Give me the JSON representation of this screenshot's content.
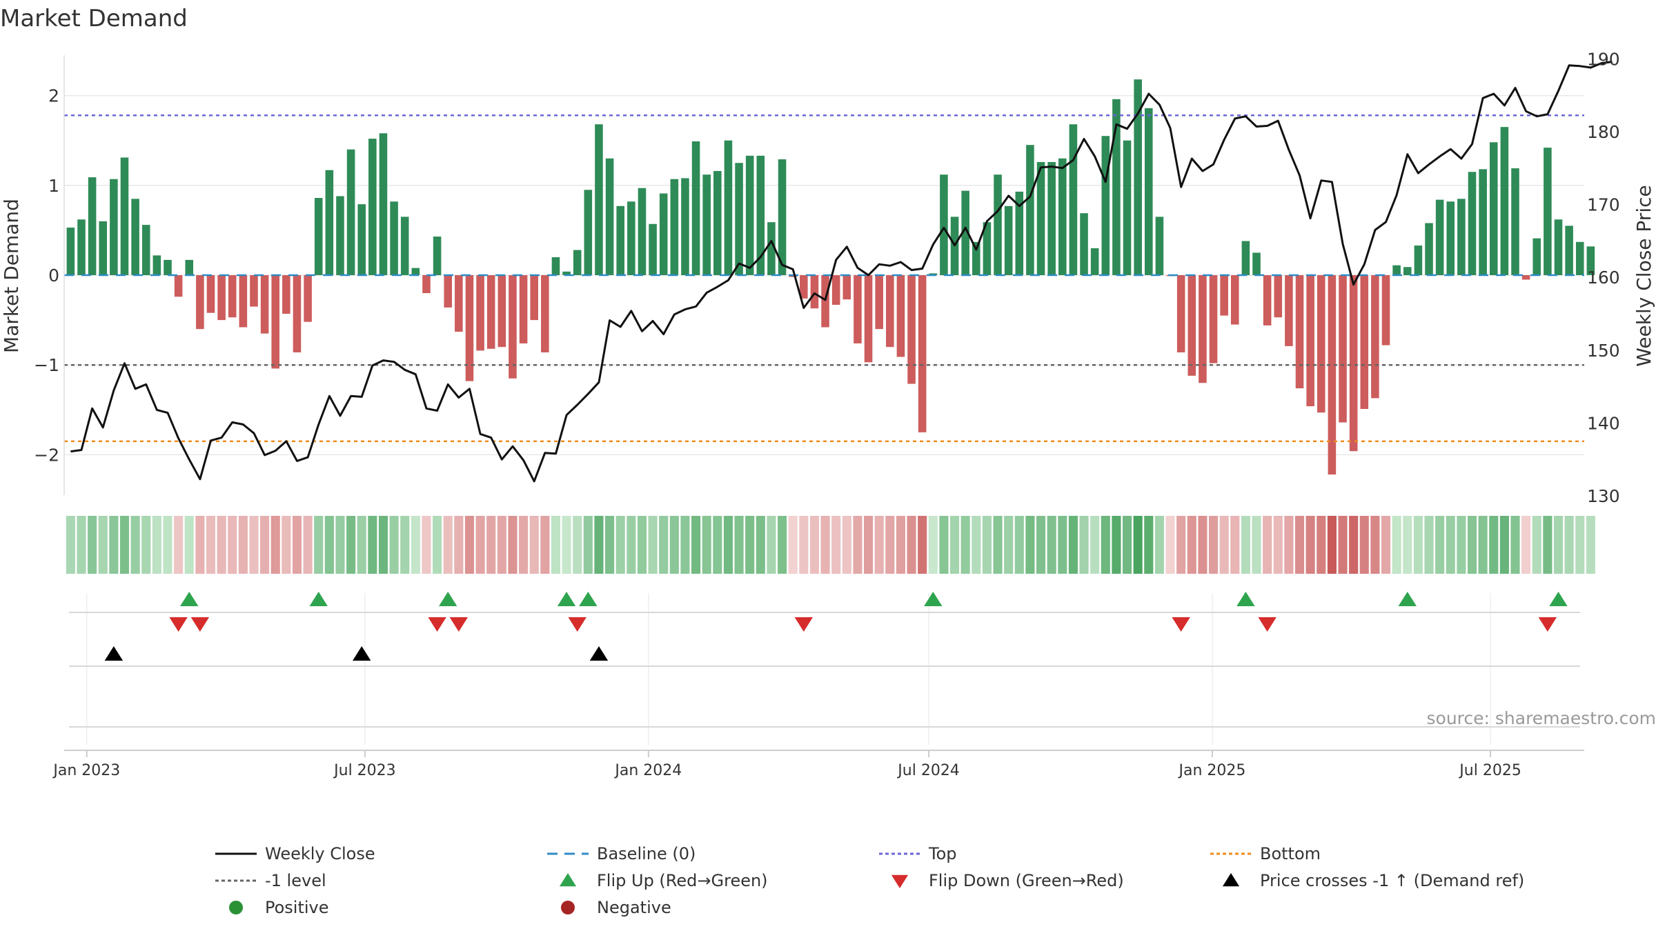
{
  "chart_data": {
    "type": "bar+line",
    "title": "Market Demand",
    "ylabel_left": "Market Demand",
    "ylabel_right": "Weekly Close Price",
    "ylim_left": [
      -2.45,
      2.45
    ],
    "ylim_right": [
      130.1,
      190.5
    ],
    "left_ticks": [
      2,
      1,
      0,
      -1,
      -2
    ],
    "left_tick_labels": [
      "2",
      "1",
      "0",
      "−1",
      "−2"
    ],
    "right_ticks": [
      190,
      180,
      170,
      160,
      150,
      140,
      130
    ],
    "right_tick_labels": [
      "190",
      "180",
      "170",
      "160",
      "150",
      "140",
      "130"
    ],
    "x_start": "2022-12-30",
    "week_days": 7,
    "x_range_weeks": [
      -0.6,
      140.4
    ],
    "x_ticks": [
      {
        "label": "Jan 2023",
        "week": 1.5
      },
      {
        "label": "Jul 2023",
        "week": 27.3
      },
      {
        "label": "Jan 2024",
        "week": 53.6
      },
      {
        "label": "Jul 2024",
        "week": 79.6
      },
      {
        "label": "Jan 2025",
        "week": 105.9
      },
      {
        "label": "Jul 2025",
        "week": 131.7
      }
    ],
    "levels": {
      "top": 1.78,
      "bottom": -1.85,
      "minus_one": -1,
      "baseline": 0
    },
    "demand": [
      0.53,
      0.62,
      1.09,
      0.6,
      1.07,
      1.31,
      0.85,
      0.56,
      0.22,
      0.17,
      -0.24,
      0.17,
      -0.6,
      -0.42,
      -0.5,
      -0.47,
      -0.58,
      -0.35,
      -0.65,
      -1.04,
      -0.43,
      -0.86,
      -0.52,
      0.86,
      1.17,
      0.88,
      1.4,
      0.79,
      1.52,
      1.58,
      0.82,
      0.65,
      0.08,
      -0.2,
      0.43,
      -0.36,
      -0.63,
      -1.18,
      -0.84,
      -0.82,
      -0.8,
      -1.15,
      -0.76,
      -0.5,
      -0.86,
      0.2,
      0.04,
      0.28,
      0.95,
      1.68,
      1.3,
      0.77,
      0.82,
      0.97,
      0.57,
      0.91,
      1.07,
      1.08,
      1.49,
      1.12,
      1.16,
      1.5,
      1.25,
      1.33,
      1.33,
      0.59,
      1.29,
      -0.02,
      -0.26,
      -0.37,
      -0.58,
      -0.33,
      -0.27,
      -0.76,
      -0.97,
      -0.6,
      -0.8,
      -0.91,
      -1.21,
      -1.75,
      0.02,
      1.12,
      0.65,
      0.94,
      0.37,
      0.59,
      1.12,
      0.77,
      0.93,
      1.45,
      1.26,
      1.26,
      1.3,
      1.68,
      0.69,
      0.3,
      1.55,
      1.96,
      1.5,
      2.18,
      1.86,
      0.65,
      -0.01,
      -0.86,
      -1.12,
      -1.2,
      -0.98,
      -0.45,
      -0.55,
      0.38,
      0.25,
      -0.56,
      -0.47,
      -0.79,
      -1.26,
      -1.46,
      -1.53,
      -2.22,
      -1.64,
      -1.96,
      -1.49,
      -1.37,
      -0.78,
      0.11,
      0.09,
      0.33,
      0.58,
      0.84,
      0.82,
      0.85,
      1.15,
      1.18,
      1.48,
      1.65,
      1.19,
      -0.05,
      0.41,
      1.42,
      0.62,
      0.55,
      0.37,
      0.32
    ],
    "price": [
      136.1,
      136.3,
      142.0,
      139.4,
      144.5,
      148.2,
      144.7,
      145.3,
      141.8,
      141.4,
      137.9,
      135.0,
      132.3,
      137.6,
      138.0,
      140.1,
      139.8,
      138.6,
      135.6,
      136.2,
      137.5,
      134.8,
      135.3,
      139.8,
      143.7,
      141.0,
      143.7,
      143.6,
      147.9,
      148.6,
      148.4,
      147.3,
      146.7,
      142.0,
      141.7,
      145.3,
      143.5,
      144.7,
      138.5,
      138.0,
      135.0,
      136.8,
      134.9,
      132.0,
      135.9,
      135.8,
      141.1,
      142.5,
      144.0,
      145.6,
      154.1,
      153.2,
      155.4,
      152.6,
      154.0,
      152.2,
      154.9,
      155.6,
      156.0,
      157.9,
      158.7,
      159.6,
      161.9,
      161.3,
      162.8,
      165.0,
      161.7,
      161.1,
      155.8,
      157.8,
      156.9,
      162.4,
      164.2,
      161.3,
      160.3,
      161.8,
      161.6,
      162.1,
      161.0,
      161.2,
      164.5,
      166.8,
      164.4,
      166.8,
      163.8,
      167.7,
      169.1,
      171.2,
      169.8,
      171.1,
      175.1,
      175.2,
      175.0,
      176.1,
      179.0,
      176.6,
      173.1,
      181.0,
      180.4,
      182.5,
      185.2,
      183.7,
      180.5,
      172.4,
      176.3,
      174.6,
      175.5,
      178.9,
      181.8,
      182.1,
      180.7,
      180.8,
      181.5,
      177.5,
      174.0,
      168.1,
      173.3,
      173.1,
      164.6,
      159.0,
      161.8,
      166.5,
      167.6,
      171.3,
      176.9,
      174.3,
      175.5,
      176.6,
      177.6,
      176.3,
      178.3,
      184.6,
      185.2,
      183.6,
      186.0,
      182.8,
      182.1,
      182.4,
      185.6,
      189.1,
      189.0,
      188.8,
      189.4,
      189.6
    ],
    "markers": {
      "flip_up": [
        11,
        23,
        35,
        46,
        48,
        80,
        109,
        124,
        138
      ],
      "flip_down": [
        10,
        12,
        34,
        36,
        47,
        68,
        103,
        111,
        137
      ],
      "price_cross": [
        4,
        27,
        49
      ]
    },
    "source": "source: sharemaestro.com",
    "legend": [
      {
        "label": "Weekly Close",
        "kind": "line",
        "color": "#111111"
      },
      {
        "label": "Baseline (0)",
        "kind": "dashed",
        "color": "#2e8bc6"
      },
      {
        "label": "Top",
        "kind": "dotted",
        "color": "#6a66d6"
      },
      {
        "label": "Bottom",
        "kind": "dotted",
        "color": "#ee8a1a"
      },
      {
        "label": "-1 level",
        "kind": "dotted",
        "color": "#666666"
      },
      {
        "label": "Flip Up (Red→Green)",
        "kind": "tri-up",
        "color": "#2fa44f"
      },
      {
        "label": "Flip Down (Green→Red)",
        "kind": "tri-down",
        "color": "#d62c2c"
      },
      {
        "label": "Price crosses -1 ↑ (Demand ref)",
        "kind": "tri-up",
        "color": "#000000"
      },
      {
        "label": "Positive",
        "kind": "dot",
        "color": "#2a9135"
      },
      {
        "label": "Negative",
        "kind": "dot",
        "color": "#a52424"
      }
    ]
  },
  "colors": {
    "positive_bar": "#2e8b57",
    "negative_bar": "#cd5c5c",
    "price_line": "#111111",
    "baseline": "#2e8bc6",
    "top": "#6a66d6",
    "bottom": "#ee8a1a",
    "minus_one": "#666666",
    "flip_up": "#2fa44f",
    "flip_down": "#d62c2c",
    "price_cross": "#000000",
    "grid": "#e8e8e8",
    "axis_text": "#333333"
  }
}
